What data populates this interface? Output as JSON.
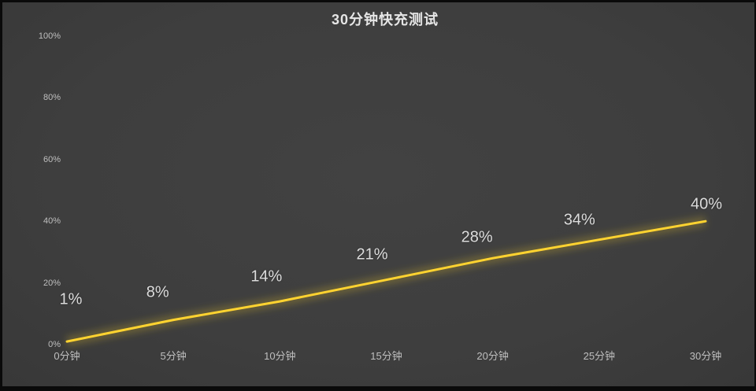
{
  "title": "30分钟快充测试",
  "colors": {
    "background": "#3f3f3f",
    "frame": "#0a0a0a",
    "line": "#ffd330",
    "line_glow": "#a8922c",
    "title_text": "#e6e6e6",
    "axis_text": "#bfbfbf",
    "data_label_text": "#dcdcdc"
  },
  "chart_data": {
    "type": "line",
    "title": "30分钟快充测试",
    "categories": [
      "0分钟",
      "5分钟",
      "10分钟",
      "15分钟",
      "20分钟",
      "25分钟",
      "30分钟"
    ],
    "values": [
      1,
      8,
      14,
      21,
      28,
      34,
      40
    ],
    "point_labels": [
      "1%",
      "8%",
      "14%",
      "21%",
      "28%",
      "34%",
      "40%"
    ],
    "xlabel": "",
    "ylabel": "",
    "ylim": [
      0,
      100
    ],
    "yticks": [
      {
        "value": 0,
        "label": "0%"
      },
      {
        "value": 20,
        "label": "20%"
      },
      {
        "value": 40,
        "label": "40%"
      },
      {
        "value": 60,
        "label": "60%"
      },
      {
        "value": 80,
        "label": "80%"
      },
      {
        "value": 100,
        "label": "100%"
      }
    ],
    "grid": false,
    "legend": "none",
    "axis_lines": false
  }
}
